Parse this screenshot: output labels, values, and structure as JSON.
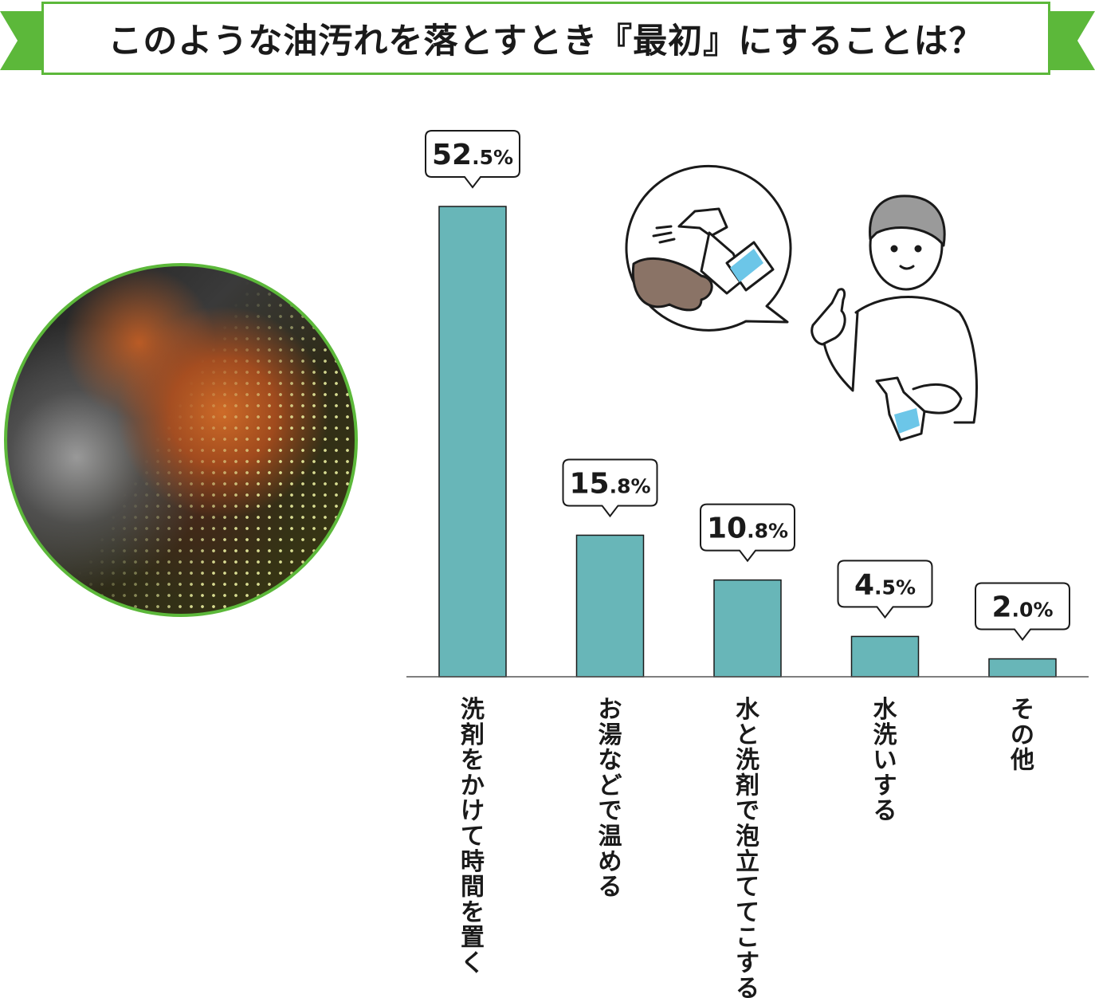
{
  "title": "このような油汚れを落とすとき『最初』にすることは？",
  "colors": {
    "banner": "#5cb83a",
    "bar": "#68b6b8",
    "bar_stroke": "#1a1a1a"
  },
  "illustration": {
    "icons": [
      "grease-photo-icon",
      "spray-bottle-icon",
      "person-pointing-icon"
    ]
  },
  "chart_data": {
    "type": "bar",
    "categories": [
      "洗剤をかけて時間を置く",
      "お湯などで温める",
      "水と洗剤で泡立ててこする",
      "水洗いする",
      "その他"
    ],
    "values": [
      52.5,
      15.8,
      10.8,
      4.5,
      2.0
    ],
    "value_labels": [
      {
        "int": "52",
        "dec": ".5%"
      },
      {
        "int": "15",
        "dec": ".8%"
      },
      {
        "int": "10",
        "dec": ".8%"
      },
      {
        "int": "4",
        "dec": ".5%"
      },
      {
        "int": "2",
        "dec": ".0%"
      }
    ],
    "ylim": [
      0,
      52.5
    ],
    "grid": false,
    "legend": "none"
  }
}
